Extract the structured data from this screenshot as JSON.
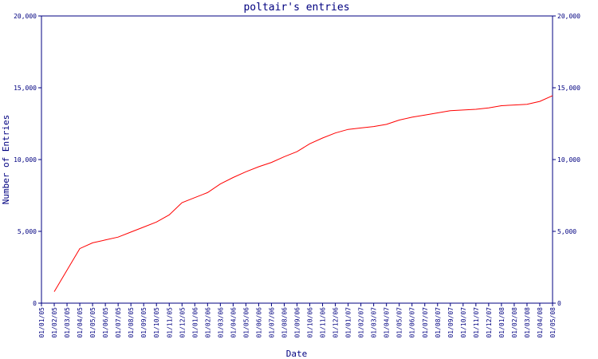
{
  "chart_data": {
    "type": "line",
    "title": "poltair's entries",
    "x_label": "Date",
    "y_label": "Number of Entries",
    "categories": [
      "01/01/05",
      "01/02/05",
      "01/03/05",
      "01/04/05",
      "01/05/05",
      "01/06/05",
      "01/07/05",
      "01/08/05",
      "01/09/05",
      "01/10/05",
      "01/11/05",
      "01/12/05",
      "01/01/06",
      "01/02/06",
      "01/03/06",
      "01/04/06",
      "01/05/06",
      "01/06/06",
      "01/07/06",
      "01/08/06",
      "01/09/06",
      "01/10/06",
      "01/11/06",
      "01/12/06",
      "01/01/07",
      "01/02/07",
      "01/03/07",
      "01/04/07",
      "01/05/07",
      "01/06/07",
      "01/07/07",
      "01/08/07",
      "01/09/07",
      "01/10/07",
      "01/11/07",
      "01/12/07",
      "01/01/08",
      "01/02/08",
      "01/03/08",
      "01/04/08",
      "01/05/08"
    ],
    "series": [
      {
        "color": "#ff0000",
        "values": [
          null,
          800,
          2300,
          3800,
          4200,
          4400,
          4600,
          4950,
          5300,
          5650,
          6150,
          7000,
          7350,
          7700,
          8300,
          8750,
          9150,
          9500,
          9800,
          10200,
          10550,
          11100,
          11500,
          11850,
          12100,
          12200,
          12300,
          12450,
          12750,
          12950,
          13100,
          13250,
          13400,
          13450,
          13500,
          13600,
          13750,
          13800,
          13850,
          14050,
          14450
        ]
      }
    ],
    "ylim": [
      0,
      20000
    ],
    "yticks": [
      0,
      {
        "value": 5000,
        "label": "5,000"
      },
      {
        "value": 10000,
        "label": "10,000"
      },
      {
        "value": 15000,
        "label": "15,000"
      },
      {
        "value": 20000,
        "label": "20,000"
      }
    ],
    "y2lim": [
      0,
      20000
    ],
    "y2ticks": [
      0,
      {
        "value": 5000,
        "label": "5,000"
      },
      {
        "value": 10000,
        "label": "10,000"
      },
      {
        "value": 15000,
        "label": "15,000"
      },
      {
        "value": 20000,
        "label": "20,000"
      }
    ],
    "axis_color": "#000080",
    "grid": false
  }
}
